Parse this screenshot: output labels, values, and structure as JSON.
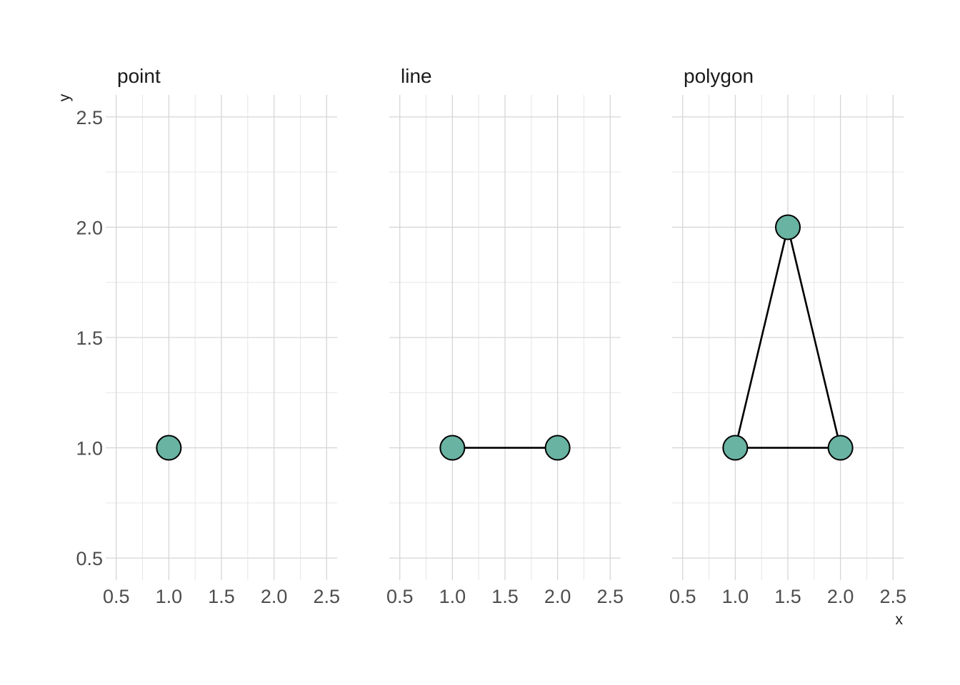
{
  "chart_data": {
    "type": "scatter",
    "xlabel": "x",
    "ylabel": "y",
    "xlim": [
      0.4,
      2.6
    ],
    "ylim": [
      0.4,
      2.6
    ],
    "x_ticks": [
      "0.5",
      "1.0",
      "1.5",
      "2.0",
      "2.5"
    ],
    "y_ticks": [
      "0.5",
      "1.0",
      "1.5",
      "2.0",
      "2.5"
    ],
    "grid": true,
    "point_color": "#69b3a2",
    "facets": [
      {
        "title": "point",
        "geom": "point",
        "points": [
          {
            "x": 1.0,
            "y": 1.0
          }
        ]
      },
      {
        "title": "line",
        "geom": "line",
        "points": [
          {
            "x": 1.0,
            "y": 1.0
          },
          {
            "x": 2.0,
            "y": 1.0
          }
        ]
      },
      {
        "title": "polygon",
        "geom": "polygon",
        "points": [
          {
            "x": 1.0,
            "y": 1.0
          },
          {
            "x": 1.5,
            "y": 2.0
          },
          {
            "x": 2.0,
            "y": 1.0
          }
        ]
      }
    ]
  }
}
